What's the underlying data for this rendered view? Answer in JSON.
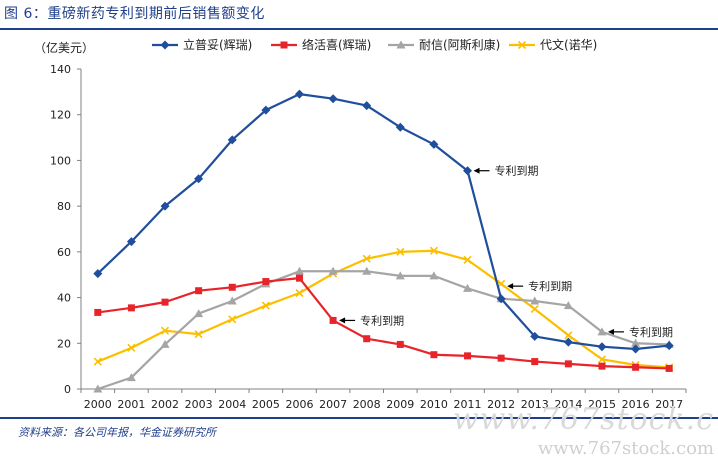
{
  "title": "图 6：重磅新药专利到期前后销售额变化",
  "source": "资料来源：各公司年报，华金证券研究所",
  "watermark": {
    "line1": "www.767stock.c",
    "line2": "www.767stock.com"
  },
  "colors": {
    "accent": "#1f3f8c"
  },
  "chart_data": {
    "type": "line",
    "unit_label": "（亿美元）",
    "x": [
      "2000",
      "2001",
      "2002",
      "2003",
      "2004",
      "2005",
      "2006",
      "2007",
      "2008",
      "2009",
      "2010",
      "2011",
      "2012",
      "2013",
      "2014",
      "2015",
      "2016",
      "2017"
    ],
    "ylim": [
      0,
      140
    ],
    "yticks": [
      0,
      20,
      40,
      60,
      80,
      100,
      120,
      140
    ],
    "grid": false,
    "legend_position": "top",
    "series": [
      {
        "name": "立普妥(辉瑞)",
        "color": "#1f4e9c",
        "marker": "diamond",
        "values": [
          50.5,
          64.5,
          80,
          92,
          109,
          122,
          129,
          127,
          124,
          114.5,
          107,
          95.5,
          39.5,
          23,
          20.5,
          18.5,
          17.5,
          19
        ]
      },
      {
        "name": "络活喜(辉瑞)",
        "color": "#e8242b",
        "marker": "square",
        "values": [
          33.5,
          35.5,
          38,
          43,
          44.5,
          47,
          48.5,
          30,
          22,
          19.5,
          15,
          14.5,
          13.5,
          12,
          11,
          10,
          9.5,
          9
        ]
      },
      {
        "name": "耐信(阿斯利康)",
        "color": "#a5a5a5",
        "marker": "triangle",
        "values": [
          0,
          5,
          19.5,
          33,
          38.5,
          46,
          51.5,
          51.5,
          51.5,
          49.5,
          49.5,
          44,
          39.5,
          38.5,
          36.5,
          25,
          20,
          19.5
        ]
      },
      {
        "name": "代文(诺华)",
        "color": "#fbbf00",
        "marker": "x",
        "values": [
          12,
          18,
          25.5,
          24,
          30.5,
          36.5,
          42,
          50.5,
          57,
          60,
          60.5,
          56.5,
          46,
          35,
          23.5,
          13,
          10.5,
          9.5
        ]
      }
    ],
    "annotations": [
      {
        "text": "专利到期",
        "x": "2011",
        "y": 95.5
      },
      {
        "text": "专利到期",
        "x": "2007",
        "y": 30
      },
      {
        "text": "专利到期",
        "x": "2012",
        "y": 45
      },
      {
        "text": "专利到期",
        "x": "2015",
        "y": 25
      }
    ]
  }
}
